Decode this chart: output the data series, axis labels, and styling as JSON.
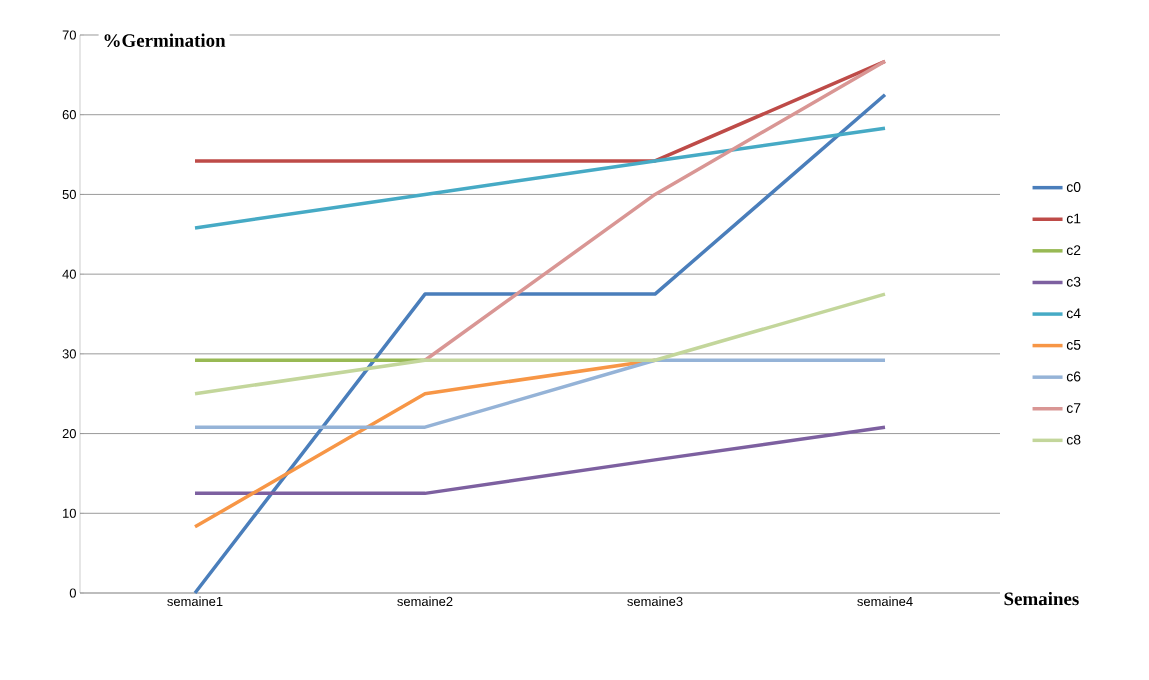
{
  "chart_data": {
    "type": "line",
    "ylabel": "%Germination",
    "xlabel": "Semaines",
    "categories": [
      "semaine1",
      "semaine2",
      "semaine3",
      "semaine4"
    ],
    "ylim": [
      0,
      70
    ],
    "yticks": [
      0,
      10,
      20,
      30,
      40,
      50,
      60,
      70
    ],
    "grid": "y",
    "legend": "right",
    "series": [
      {
        "name": "c0",
        "color": "#4a7ebb",
        "values": [
          0,
          37.5,
          37.5,
          62.5
        ]
      },
      {
        "name": "c1",
        "color": "#be4b48",
        "values": [
          54.2,
          54.2,
          54.2,
          66.7
        ]
      },
      {
        "name": "c2",
        "color": "#98b954",
        "values": [
          29.2,
          29.2,
          null,
          null
        ]
      },
      {
        "name": "c3",
        "color": "#7d60a0",
        "values": [
          12.5,
          12.5,
          16.7,
          20.8
        ]
      },
      {
        "name": "c4",
        "color": "#46aac5",
        "values": [
          45.8,
          50,
          54.2,
          58.3
        ]
      },
      {
        "name": "c5",
        "color": "#f79646",
        "values": [
          8.3,
          25,
          29.2,
          null
        ]
      },
      {
        "name": "c6",
        "color": "#95b3d7",
        "values": [
          20.8,
          20.8,
          29.2,
          29.2
        ]
      },
      {
        "name": "c7",
        "color": "#d99694",
        "values": [
          null,
          29.2,
          50,
          66.7
        ]
      },
      {
        "name": "c8",
        "color": "#c3d69b",
        "values": [
          25,
          29.2,
          29.2,
          37.5
        ]
      }
    ]
  }
}
